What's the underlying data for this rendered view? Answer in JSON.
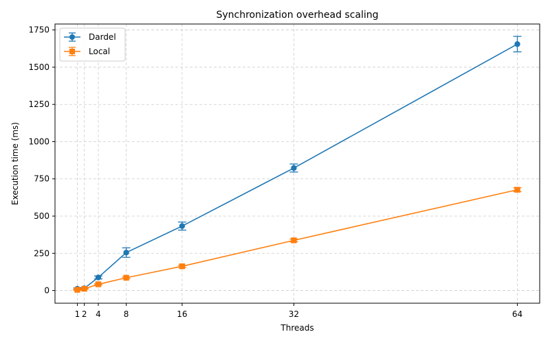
{
  "chart_data": {
    "type": "line",
    "title": "Synchronization overhead scaling",
    "xlabel": "Threads",
    "ylabel": "Execution time (ms)",
    "x": [
      1,
      2,
      4,
      8,
      16,
      32,
      64
    ],
    "xticks": [
      1,
      2,
      4,
      8,
      16,
      32,
      64
    ],
    "xlim": [
      -2.2,
      67.2
    ],
    "yticks": [
      0,
      250,
      500,
      750,
      1000,
      1250,
      1500,
      1750
    ],
    "ylim": [
      -85,
      1790
    ],
    "grid": true,
    "legend_position": "top-left",
    "series": [
      {
        "name": "Dardel",
        "marker": "circle",
        "color": "#1f77b4",
        "values": [
          12,
          15,
          88,
          255,
          433,
          823,
          1655
        ],
        "errors": [
          5,
          5,
          10,
          32,
          27,
          27,
          52
        ]
      },
      {
        "name": "Local",
        "marker": "square",
        "color": "#ff7f0e",
        "values": [
          5,
          12,
          42,
          86,
          163,
          337,
          677
        ],
        "errors": [
          3,
          3,
          4,
          5,
          7,
          9,
          13
        ]
      }
    ]
  }
}
